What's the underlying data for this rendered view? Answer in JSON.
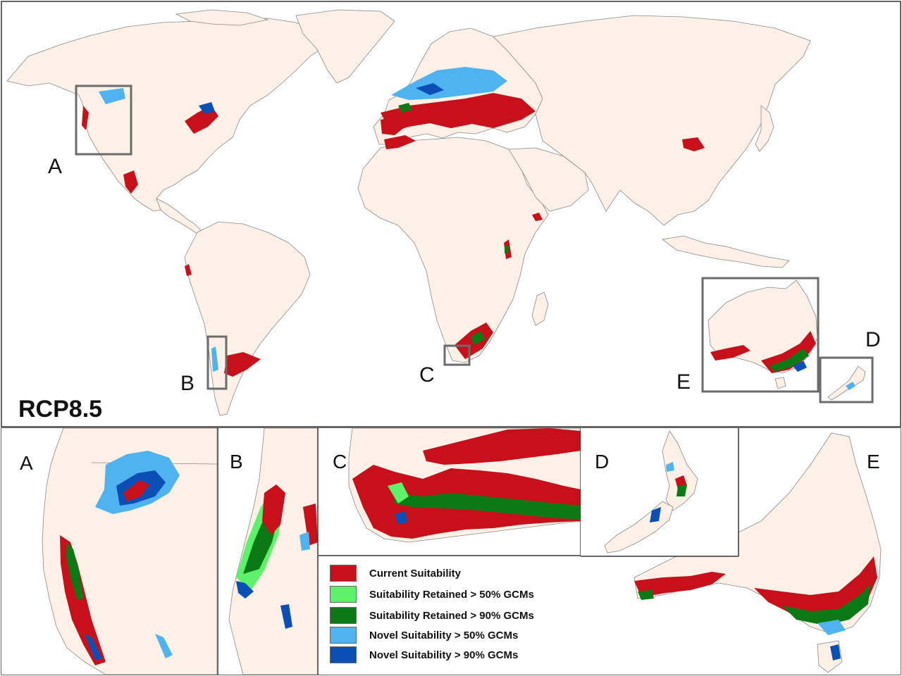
{
  "scenario_label": "RCP8.5",
  "main_region_labels": [
    "A",
    "B",
    "C",
    "D",
    "E"
  ],
  "insets": [
    {
      "letter": "A"
    },
    {
      "letter": "B"
    },
    {
      "letter": "C"
    },
    {
      "letter": "D"
    },
    {
      "letter": "E"
    }
  ],
  "legend": [
    {
      "label": "Current Suitability",
      "color": "#c8101a"
    },
    {
      "label": "Suitability Retained > 50% GCMs",
      "color": "#5df26b"
    },
    {
      "label": "Suitability Retained > 90% GCMs",
      "color": "#0b7a14"
    },
    {
      "label": "Novel Suitability > 50% GCMs",
      "color": "#4fb3f0"
    },
    {
      "label": "Novel Suitability > 90% GCMs",
      "color": "#0a4fb5"
    }
  ],
  "colors": {
    "land": "#fdf0e6",
    "ocean": "#ffffff",
    "border": "#8a8a8a",
    "box": "#6b6b6b"
  }
}
